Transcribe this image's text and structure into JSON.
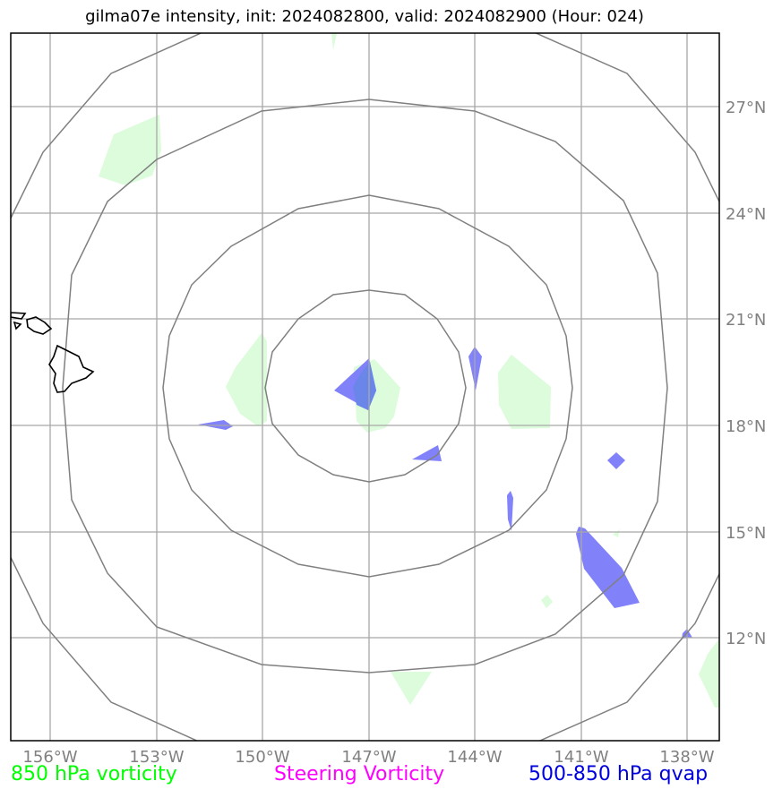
{
  "title": "gilma07e intensity, init: 2024082800, valid: 2024082900 (Hour: 024)",
  "map": {
    "lon_ticks": [
      "156°W",
      "153°W",
      "150°W",
      "147°W",
      "144°W",
      "141°W",
      "138°W"
    ],
    "lat_ticks": [
      "27°N",
      "24°N",
      "21°N",
      "18°N",
      "15°N",
      "12°N"
    ],
    "colors": {
      "vorticity_850_fill": "#dcfcdc",
      "qvap_fill": "#7b7bfa",
      "range_rings": "#808080",
      "grid": "#a8a8a8",
      "coastline": "#000000"
    }
  },
  "legend": {
    "left": "850 hPa vorticity",
    "middle": "Steering Vorticity",
    "right": "500-850 hPa qvap"
  }
}
